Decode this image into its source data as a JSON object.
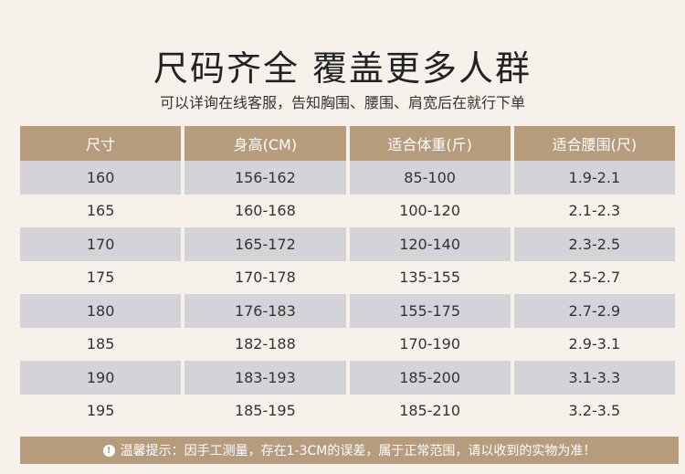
{
  "title": "尺码齐全 覆盖更多人群",
  "subtitle": "可以详询在线客服，告知胸围、腰围、肩宽后在就行下单",
  "table": {
    "headers": [
      "尺寸",
      "身高(CM)",
      "适合体重(斤)",
      "适合腰围(尺)"
    ],
    "rows": [
      [
        "160",
        "156-162",
        "85-100",
        "1.9-2.1"
      ],
      [
        "165",
        "160-168",
        "100-120",
        "2.1-2.3"
      ],
      [
        "170",
        "165-172",
        "120-140",
        "2.3-2.5"
      ],
      [
        "175",
        "170-178",
        "135-155",
        "2.5-2.7"
      ],
      [
        "180",
        "176-183",
        "155-175",
        "2.7-2.9"
      ],
      [
        "185",
        "182-188",
        "170-190",
        "2.9-3.1"
      ],
      [
        "190",
        "183-193",
        "185-200",
        "3.1-3.3"
      ],
      [
        "195",
        "185-195",
        "185-210",
        "3.2-3.5"
      ]
    ]
  },
  "notice": {
    "icon": "exclamation-circle-icon",
    "text": "温馨提示：因手工测量，存在1-3CM的误差，属于正常范围，请以收到的实物为准！"
  },
  "colors": {
    "header_bg": "#b69b7c",
    "row_shade": "#d4d3d7",
    "page_bg": "#f7f1ec"
  }
}
